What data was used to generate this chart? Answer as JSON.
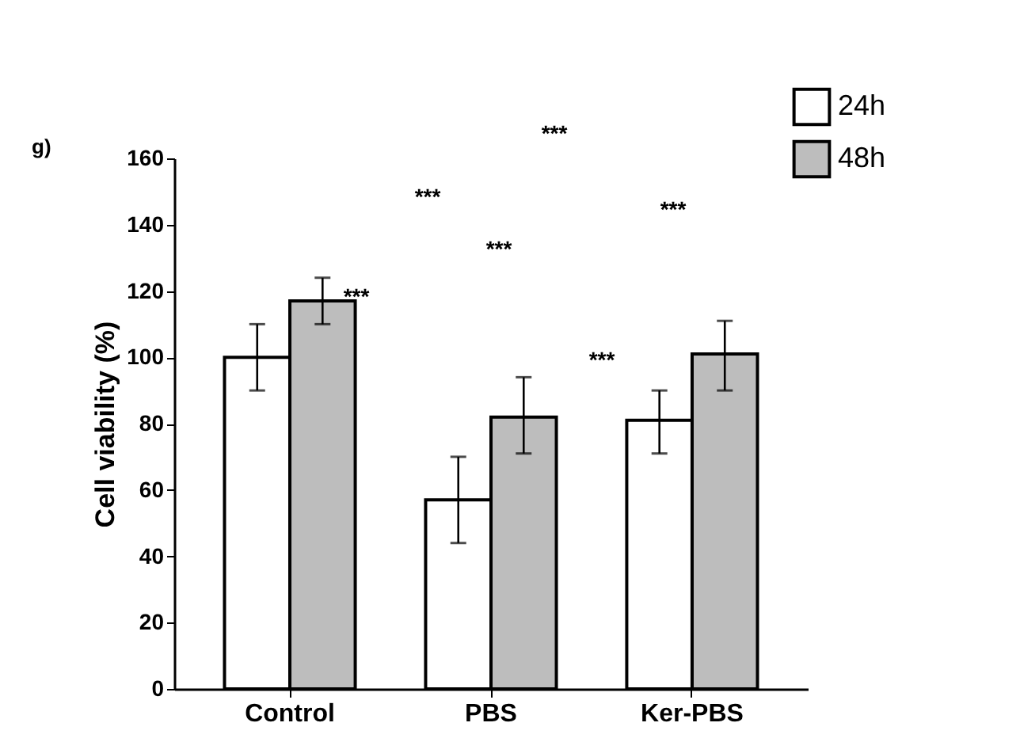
{
  "chart_data": {
    "type": "bar",
    "ylabel": "Cell viability (%)",
    "categories": [
      "Control",
      "PBS",
      "Ker-PBS"
    ],
    "series": [
      {
        "name": "24h",
        "color": "#ffffff",
        "values": [
          100,
          57,
          81
        ],
        "errors": [
          [
            90,
            110
          ],
          [
            44,
            70
          ],
          [
            71,
            90
          ]
        ]
      },
      {
        "name": "48h",
        "color": "#bdbdbd",
        "values": [
          117,
          82,
          101
        ],
        "errors": [
          [
            110,
            124
          ],
          [
            71,
            94
          ],
          [
            90,
            111
          ]
        ]
      }
    ],
    "ylim": [
      0,
      160
    ],
    "yticks": [
      0,
      20,
      40,
      60,
      80,
      100,
      120,
      140,
      160
    ],
    "grid": false,
    "legend": "top right",
    "annotations": [
      "g)",
      "***",
      "***",
      "***",
      "***",
      "***",
      "***"
    ]
  }
}
